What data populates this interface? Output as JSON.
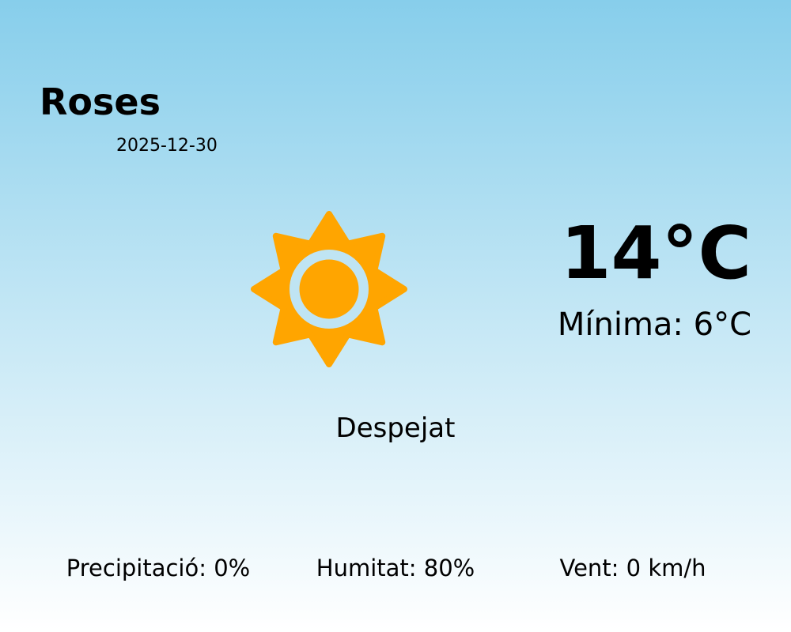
{
  "location": {
    "city": "Roses",
    "date": "2025-12-30"
  },
  "current": {
    "icon": "sun-icon",
    "icon_color": "#FFA500",
    "temperature": "14°C",
    "minimum": "Mínima: 6°C",
    "condition": "Despejat"
  },
  "stats": [
    {
      "label": "Precipitació: 0%"
    },
    {
      "label": "Humitat: 80%"
    },
    {
      "label": "Vent: 0 km/h"
    }
  ]
}
